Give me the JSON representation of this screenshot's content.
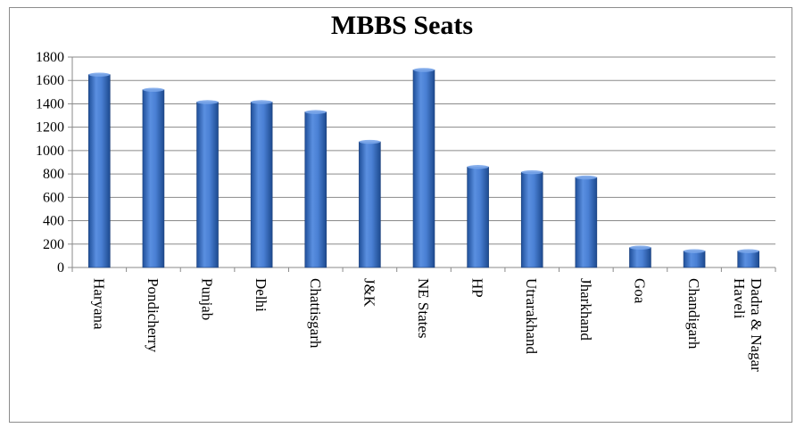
{
  "chart_data": {
    "type": "bar",
    "title": "MBBS Seats",
    "xlabel": "",
    "ylabel": "",
    "ylim": [
      0,
      1800
    ],
    "yticks": [
      0,
      200,
      400,
      600,
      800,
      1000,
      1200,
      1400,
      1600,
      1800
    ],
    "grid": true,
    "legend": "none",
    "bar_color": "#3f76c8",
    "categories": [
      "Haryana",
      "Pondicherry",
      "Punjab",
      "Delhi",
      "Chattisgarh",
      "J&K",
      "NE States",
      "HP",
      "Utrarakhand",
      "Jharkhand",
      "Goa",
      "Chandigarh",
      "Dadra & Nagar Haveli"
    ],
    "category_lines": [
      [
        "Haryana"
      ],
      [
        "Pondicherry"
      ],
      [
        "Punjab"
      ],
      [
        "Delhi"
      ],
      [
        "Chattisgarh"
      ],
      [
        "J&K"
      ],
      [
        "NE States"
      ],
      [
        "HP"
      ],
      [
        "Utrarakhand"
      ],
      [
        "Jharkhand"
      ],
      [
        "Goa"
      ],
      [
        "Chandigarh"
      ],
      [
        "Dadra & Nagar",
        "Haveli"
      ]
    ],
    "values": [
      1650,
      1520,
      1415,
      1415,
      1330,
      1075,
      1690,
      860,
      815,
      770,
      170,
      140,
      140
    ]
  }
}
